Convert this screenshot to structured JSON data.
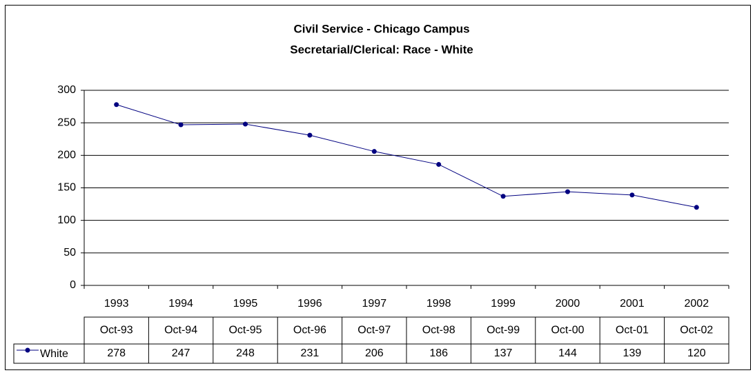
{
  "chart_data": {
    "type": "line",
    "title": "Civil Service - Chicago Campus",
    "subtitle": "Secretarial/Clerical: Race - White",
    "categories": [
      "1993",
      "1994",
      "1995",
      "1996",
      "1997",
      "1998",
      "1999",
      "2000",
      "2001",
      "2002"
    ],
    "table_header": [
      "Oct-93",
      "Oct-94",
      "Oct-95",
      "Oct-96",
      "Oct-97",
      "Oct-98",
      "Oct-99",
      "Oct-00",
      "Oct-01",
      "Oct-02"
    ],
    "series": [
      {
        "name": "White",
        "color": "#000080",
        "values": [
          278,
          247,
          248,
          231,
          206,
          186,
          137,
          144,
          139,
          120
        ]
      }
    ],
    "ylim": [
      0,
      300
    ],
    "yticks": [
      0,
      50,
      100,
      150,
      200,
      250,
      300
    ],
    "grid": true
  }
}
